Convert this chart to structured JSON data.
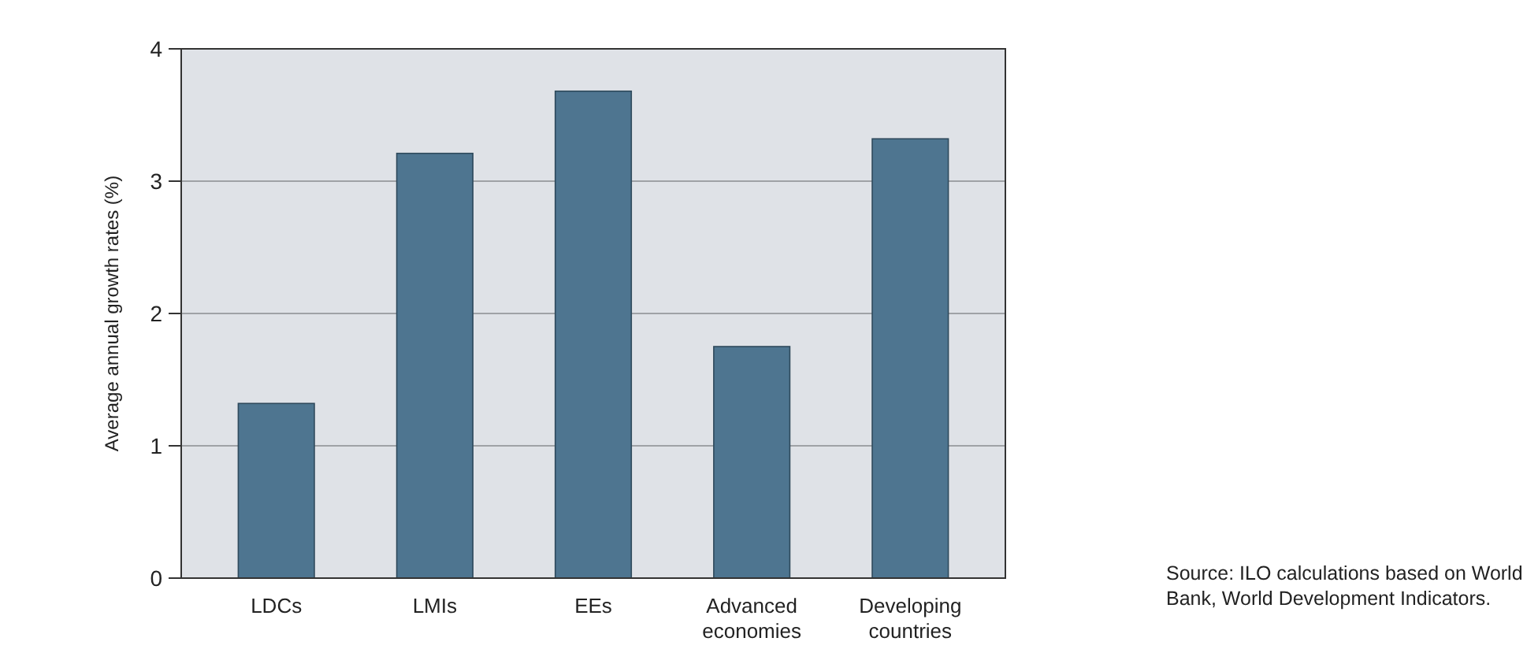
{
  "chart_data": {
    "type": "bar",
    "ylabel": "Average annual growth rates (%)",
    "categories": [
      "LDCs",
      "LMIs",
      "EEs",
      "Advanced economies",
      "Developing countries"
    ],
    "values": [
      1.32,
      3.21,
      3.68,
      1.75,
      3.32
    ],
    "color": "#4e7590",
    "ylim": [
      0,
      4
    ],
    "yticks": [
      0,
      1,
      2,
      3,
      4
    ],
    "grid": "y",
    "annotations": [
      "Source: ILO calculations based on World Bank, World Development Indicators."
    ]
  }
}
